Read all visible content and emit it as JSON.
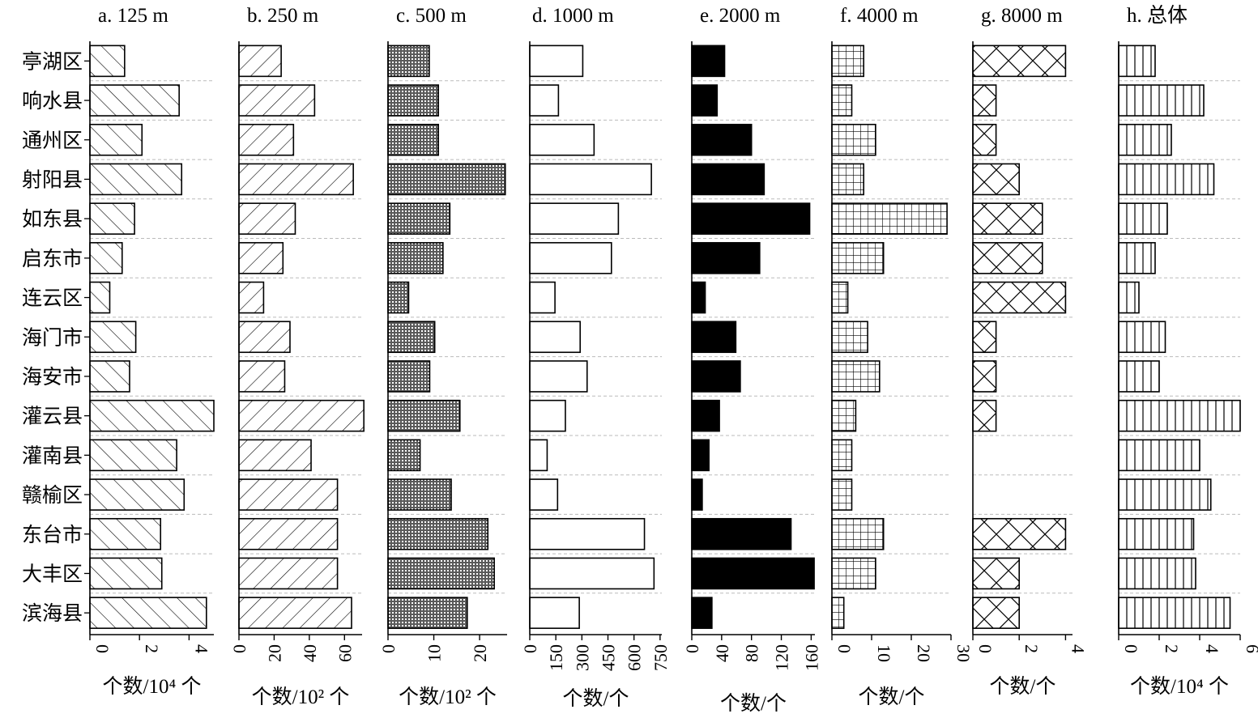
{
  "categories": [
    "亭湖区",
    "响水县",
    "通州区",
    "射阳县",
    "如东县",
    "启东市",
    "连云区",
    "海门市",
    "海安市",
    "灌云县",
    "灌南县",
    "赣榆区",
    "东台市",
    "大丰区",
    "滨海县"
  ],
  "chart_data": [
    {
      "type": "bar",
      "title": "a. 125 m",
      "xlabel": "个数/10⁴ 个",
      "xlim": [
        0,
        5
      ],
      "ticks": [
        "0",
        "2",
        "4"
      ],
      "tick_values": [
        0,
        2,
        4
      ],
      "pattern": "back-diagonal",
      "values": [
        1.4,
        3.6,
        2.1,
        3.7,
        1.8,
        1.3,
        0.8,
        1.85,
        1.6,
        5.0,
        3.5,
        3.8,
        2.85,
        2.9,
        4.7
      ]
    },
    {
      "type": "bar",
      "title": "b. 250 m",
      "xlabel": "个数/10² 个",
      "xlim": [
        0,
        70
      ],
      "ticks": [
        "0",
        "20",
        "40",
        "60"
      ],
      "tick_values": [
        0,
        20,
        40,
        60
      ],
      "pattern": "forward-diagonal",
      "values": [
        24,
        43,
        31,
        65,
        32,
        25,
        14,
        29,
        26,
        71,
        41,
        56,
        56,
        56,
        64
      ]
    },
    {
      "type": "bar",
      "title": "c. 500 m",
      "xlabel": "个数/10² 个",
      "xlim": [
        0,
        26
      ],
      "ticks": [
        "0",
        "10",
        "20"
      ],
      "tick_values": [
        0,
        10,
        20
      ],
      "pattern": "dense-dots",
      "values": [
        9,
        11,
        11,
        25.6,
        13.5,
        12,
        4.5,
        10.2,
        9.1,
        15.7,
        7,
        13.8,
        21.8,
        23.2,
        17.3
      ]
    },
    {
      "type": "bar",
      "title": "d. 1000 m",
      "xlabel": "个数/个",
      "xlim": [
        0,
        760
      ],
      "ticks": [
        "0",
        "150",
        "300",
        "450",
        "600",
        "750"
      ],
      "tick_values": [
        0,
        150,
        300,
        450,
        600,
        750
      ],
      "pattern": "none",
      "values": [
        305,
        165,
        370,
        700,
        510,
        470,
        145,
        290,
        330,
        205,
        100,
        160,
        660,
        715,
        285
      ]
    },
    {
      "type": "bar",
      "title": "e. 2000 m",
      "xlabel": "个数/个",
      "xlim": [
        0,
        165
      ],
      "ticks": [
        "0",
        "40",
        "80",
        "120",
        "160"
      ],
      "tick_values": [
        0,
        40,
        80,
        120,
        160
      ],
      "pattern": "solid",
      "values": [
        44,
        34,
        80,
        97,
        158,
        91,
        18,
        59,
        65,
        37,
        23,
        14,
        133,
        164,
        27
      ]
    },
    {
      "type": "bar",
      "title": "f. 4000 m",
      "xlabel": "个数/个",
      "xlim": [
        0,
        30
      ],
      "ticks": [
        "0",
        "10",
        "20",
        "30"
      ],
      "tick_values": [
        0,
        10,
        20,
        30
      ],
      "pattern": "grid",
      "values": [
        8,
        5,
        11,
        8,
        29,
        13,
        4,
        9,
        12,
        6,
        5,
        5,
        13,
        11,
        3
      ]
    },
    {
      "type": "bar",
      "title": "g. 8000 m",
      "xlabel": "个数/个",
      "xlim": [
        0,
        4.3
      ],
      "ticks": [
        "0",
        "2",
        "4"
      ],
      "tick_values": [
        0,
        2,
        4
      ],
      "pattern": "crosshatch",
      "values": [
        4,
        1,
        1,
        2,
        3,
        3,
        4,
        1,
        1,
        1,
        0,
        0,
        4,
        2,
        2
      ]
    },
    {
      "type": "bar",
      "title": "h. 总体",
      "xlabel": "个数/10⁴ 个",
      "xlim": [
        0,
        6
      ],
      "ticks": [
        "0",
        "2",
        "4",
        "6"
      ],
      "tick_values": [
        0,
        2,
        4,
        6
      ],
      "pattern": "vertical",
      "values": [
        1.8,
        4.2,
        2.6,
        4.7,
        2.4,
        1.8,
        1.0,
        2.3,
        2.0,
        6.0,
        4.0,
        4.55,
        3.7,
        3.8,
        5.5
      ]
    }
  ]
}
